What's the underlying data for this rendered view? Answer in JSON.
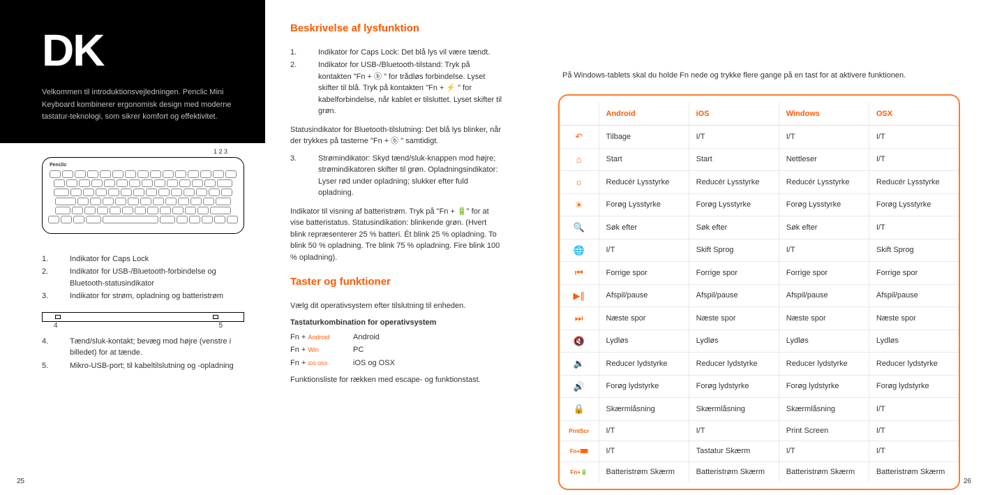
{
  "left": {
    "lang_code": "DK",
    "intro": "Velkommen til introduktionsvejledningen. Penclic Mini Keyboard kombinerer ergonomisk design med moderne tastatur-teknologi, som sikrer komfort og effektivitet.",
    "diagram_nums": "1   2   3",
    "indicators": [
      "Indikator for Caps Lock",
      "Indikator for USB-/Bluetooth-forbindelse og Bluetooth-statusindikator",
      "Indikator for strøm, opladning og batteristrøm"
    ],
    "usb4": "4",
    "usb5": "5",
    "indicators2": [
      "Tænd/sluk-kontakt; bevæg mod højre (venstre i billedet) for at tænde.",
      "Mikro-USB-port; til kabeltilslutning og -opladning"
    ],
    "page_left": "25"
  },
  "mid": {
    "h1": "Beskrivelse af lysfunktion",
    "items": [
      {
        "n": "1.",
        "t": "Indikator for Caps Lock: Det blå lys vil være tændt."
      },
      {
        "n": "2.",
        "t": "Indikator for USB-/Bluetooth-tilstand: Tryk på kontakten \"Fn + ⓑ \" for trådløs forbindelse. Lyset skifter til blå. Tryk på kontakten \"Fn + ⚡ \" for kabelforbindelse, når kablet er tilsluttet. Lyset skifter til grøn."
      }
    ],
    "p1": "Statusindikator for Bluetooth-tilslutning: Det blå lys blinker, når der trykkes på tasterne \"Fn + ⓑ \" samtidigt.",
    "items2": [
      {
        "n": "3.",
        "t": "Strømindikator: Skyd tænd/sluk-knappen mod højre; strømindikatoren skifter til grøn. Opladningsindikator: Lyser rød under opladning; slukker efter fuld opladning."
      }
    ],
    "p2": "Indikator til visning af batteristrøm. Tryk på \"Fn + 🔋\" for at vise batteristatus. Statusindikation: blinkende grøn. (Hvert blink repræsenterer 25 % batteri. Ét blink 25 % opladning. To blink 50 % opladning. Tre blink 75 % opladning. Fire blink 100 % opladning).",
    "h2": "Taster og funktioner",
    "p3": "Vælg dit operativsystem efter tilslutning til enheden.",
    "sub": "Tastaturkombination for operativsystem",
    "combos": [
      {
        "k": "Fn + ",
        "ks": "Android",
        "v": "Android"
      },
      {
        "k": "Fn + ",
        "ks": "Win",
        "v": "PC"
      },
      {
        "k": "Fn + ",
        "ks": "iOS OSX",
        "v": "iOS og OSX"
      }
    ],
    "p4": "Funktionsliste for rækken med escape- og funktionstast."
  },
  "right": {
    "note": "På Windows-tablets skal du holde Fn nede og trykke flere gange på en tast for at aktivere funktionen.",
    "headers": [
      "",
      "Android",
      "iOS",
      "Windows",
      "OSX"
    ],
    "rows": [
      {
        "icon": "↶",
        "c": [
          "Tilbage",
          "I/T",
          "I/T",
          "I/T"
        ]
      },
      {
        "icon": "⌂",
        "c": [
          "Start",
          "Start",
          "Nettleser",
          "I/T"
        ]
      },
      {
        "icon": "☼",
        "c": [
          "Reducér Lysstyrke",
          "Reducér Lysstyrke",
          "Reducér Lysstyrke",
          "Reducér Lysstyrke"
        ]
      },
      {
        "icon": "☀",
        "c": [
          "Forøg Lysstyrke",
          "Forøg Lysstyrke",
          "Forøg Lysstyrke",
          "Forøg Lysstyrke"
        ]
      },
      {
        "icon": "🔍",
        "c": [
          "Søk efter",
          "Søk efter",
          "Søk efter",
          "I/T"
        ]
      },
      {
        "icon": "🌐",
        "c": [
          "I/T",
          "Skift Sprog",
          "I/T",
          "Skift Sprog"
        ]
      },
      {
        "icon": "⏮",
        "c": [
          "Forrige spor",
          "Forrige spor",
          "Forrige spor",
          "Forrige spor"
        ]
      },
      {
        "icon": "▶∥",
        "c": [
          "Afspil/pause",
          "Afspil/pause",
          "Afspil/pause",
          "Afspil/pause"
        ]
      },
      {
        "icon": "⏭",
        "c": [
          "Næste spor",
          "Næste spor",
          "Næste spor",
          "Næste spor"
        ]
      },
      {
        "icon": "🔇",
        "c": [
          "Lydløs",
          "Lydløs",
          "Lydløs",
          "Lydløs"
        ]
      },
      {
        "icon": "🔉",
        "c": [
          "Reducer lydstyrke",
          "Reducer lydstyrke",
          "Reducer lydstyrke",
          "Reducer lydstyrke"
        ]
      },
      {
        "icon": "🔊",
        "c": [
          "Forøg lydstyrke",
          "Forøg lydstyrke",
          "Forøg lydstyrke",
          "Forøg lydstyrke"
        ]
      },
      {
        "icon": "🔒",
        "c": [
          "Skærmlåsning",
          "Skærmlåsning",
          "Skærmlåsning",
          "I/T"
        ]
      },
      {
        "icon": "PrntScr",
        "txt": true,
        "c": [
          "I/T",
          "I/T",
          "Print Screen",
          "I/T"
        ]
      },
      {
        "icon": "Fn+⌨",
        "txt": true,
        "c": [
          "I/T",
          "Tastatur Skærm",
          "I/T",
          "I/T"
        ]
      },
      {
        "icon": "Fn+🔋",
        "txt": true,
        "c": [
          "Batteristrøm Skærm",
          "Batteristrøm Skærm",
          "Batteristrøm Skærm",
          "Batteristrøm Skærm"
        ]
      }
    ],
    "page_right": "26"
  }
}
